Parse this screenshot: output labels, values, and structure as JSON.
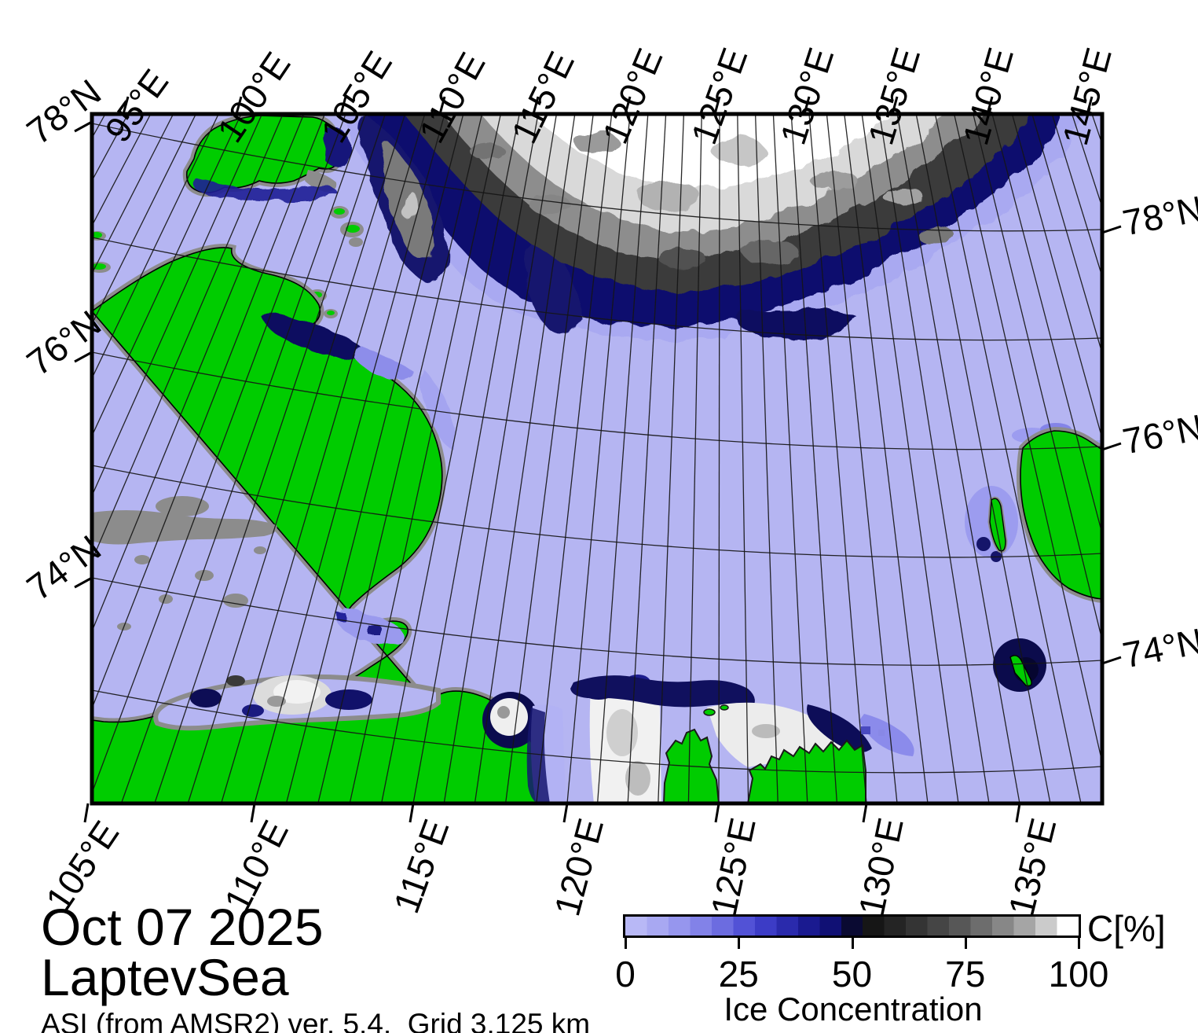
{
  "map_frame": {
    "top_longitude_labels": [
      "95°E",
      "100°E",
      "105°E",
      "110°E",
      "115°E",
      "120°E",
      "125°E",
      "130°E",
      "135°E",
      "140°E",
      "145°E"
    ],
    "bottom_longitude_labels": [
      "105°E",
      "110°E",
      "115°E",
      "120°E",
      "125°E",
      "130°E",
      "135°E"
    ],
    "left_latitude_labels": [
      "78°N",
      "76°N",
      "74°N"
    ],
    "right_latitude_labels": [
      "78°N",
      "76°N",
      "74°N"
    ]
  },
  "legend": {
    "title_date": "Oct 07 2025",
    "title_region": "LaptevSea",
    "subtitle": "ASI (from AMSR2) ver. 5.4,  Grid 3.125 km",
    "colorbar_unit": "C[%]",
    "colorbar_axis_label": "Ice Concentration",
    "colorbar_tick_labels": [
      "0",
      "25",
      "50",
      "75",
      "100"
    ],
    "colorbar_range": [
      0,
      100
    ]
  },
  "colors": {
    "open_water": "#b5b5f2",
    "land": "#00cc00",
    "coast_no_data": "#8c8c8c",
    "ice_low_blue": "#9a9aee",
    "ice_mid_navy": "#10106a",
    "ice_dark_gray": "#3b3b3b",
    "ice_high_white": "#ffffff",
    "graticule": "#161616",
    "frame": "#000000",
    "colorbar_stops": [
      "#b8b8f6",
      "#a8a8f2",
      "#9696ee",
      "#8282e8",
      "#6c6ce0",
      "#5252d6",
      "#3c3cc6",
      "#2a2aac",
      "#1a1a90",
      "#101074",
      "#0a0a32",
      "#161616",
      "#242424",
      "#343434",
      "#454545",
      "#575757",
      "#6d6d6d",
      "#878787",
      "#a5a5a5",
      "#cbcbcb",
      "#ffffff"
    ]
  }
}
